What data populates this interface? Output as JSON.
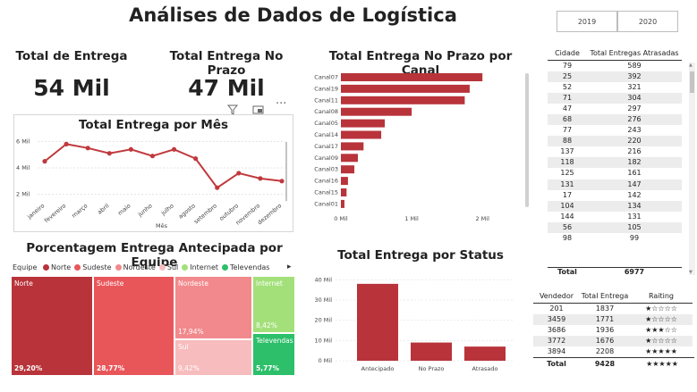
{
  "header": {
    "title": "Análises de Dados de Logística"
  },
  "year_filter": {
    "options": [
      "2019",
      "2020"
    ]
  },
  "kpis": [
    {
      "label": "Total de Entrega",
      "value": "54 Mil"
    },
    {
      "label": "Total Entrega No Prazo",
      "value": "47 Mil"
    }
  ],
  "visual_toolbar": {
    "filter_icon": "filter-icon",
    "focus_icon": "focus-mode-icon",
    "more_icon": "more-options-icon",
    "more_glyph": "···"
  },
  "monthly_chart": {
    "title": "Total Entrega por Mês",
    "xlabel": "Mês",
    "y_ticks": [
      "6 Mil",
      "4 Mil",
      "2 Mil"
    ],
    "color": "#c0393d"
  },
  "channel_chart": {
    "title": "Total Entrega No Prazo por Canal",
    "x_ticks": [
      "0 Mil",
      "1 Mil",
      "2 Mil"
    ],
    "color": "#b8343a"
  },
  "status_chart": {
    "title": "Total Entrega por Status",
    "y_ticks": [
      "40 Mil",
      "30 Mil",
      "20 Mil",
      "10 Mil",
      "0 Mil"
    ],
    "color": "#b8343a"
  },
  "treemap": {
    "title": "Porcentagem Entrega Antecipada por Equipe",
    "legend_label": "Equipe",
    "legend_more_icon": "chevron-right-icon",
    "legend_more_glyph": "▸",
    "items": [
      {
        "name": "Norte",
        "pct": "29,20%",
        "color": "#b8343a"
      },
      {
        "name": "Sudeste",
        "pct": "28,77%",
        "color": "#e8565a"
      },
      {
        "name": "Nordeste",
        "pct": "17,94%",
        "color": "#f2898c"
      },
      {
        "name": "Sul",
        "pct": "9,42%",
        "color": "#f7bcbd"
      },
      {
        "name": "Internet",
        "pct": "8,42%",
        "color": "#a3e07a"
      },
      {
        "name": "Televendas",
        "pct": "5,77%",
        "color": "#2dbf6a"
      }
    ]
  },
  "city_table": {
    "headers": [
      "Cidade",
      "Total Entregas Atrasadas"
    ],
    "rows": [
      [
        "79",
        "589"
      ],
      [
        "25",
        "392"
      ],
      [
        "52",
        "321"
      ],
      [
        "71",
        "304"
      ],
      [
        "47",
        "297"
      ],
      [
        "68",
        "276"
      ],
      [
        "77",
        "243"
      ],
      [
        "88",
        "220"
      ],
      [
        "137",
        "216"
      ],
      [
        "118",
        "182"
      ],
      [
        "125",
        "161"
      ],
      [
        "131",
        "147"
      ],
      [
        "17",
        "142"
      ],
      [
        "104",
        "134"
      ],
      [
        "144",
        "131"
      ],
      [
        "56",
        "105"
      ],
      [
        "98",
        "99"
      ]
    ],
    "total_label": "Total",
    "total_value": "6977",
    "scroll_up_glyph": "▲",
    "scroll_down_glyph": "▼"
  },
  "seller_table": {
    "headers": [
      "Vendedor",
      "Total Entrega",
      "Raiting"
    ],
    "rows": [
      {
        "id": "201",
        "total": "1837",
        "stars": 1
      },
      {
        "id": "3459",
        "total": "1771",
        "stars": 1
      },
      {
        "id": "3686",
        "total": "1936",
        "stars": 3
      },
      {
        "id": "3772",
        "total": "1676",
        "stars": 1
      },
      {
        "id": "3894",
        "total": "2208",
        "stars": 5
      }
    ],
    "total_label": "Total",
    "total_value": "9428",
    "total_stars": 5
  },
  "chart_data": [
    {
      "type": "line",
      "title": "Total Entrega por Mês",
      "xlabel": "Mês",
      "ylabel": "",
      "categories": [
        "janeiro",
        "fevereiro",
        "março",
        "abril",
        "maio",
        "junho",
        "julho",
        "agosto",
        "setembro",
        "outubro",
        "novembro",
        "dezembro"
      ],
      "values": [
        4500,
        5800,
        5500,
        5100,
        5400,
        4900,
        5400,
        4700,
        2500,
        3600,
        3200,
        3000
      ],
      "ylim": [
        1500,
        6500
      ]
    },
    {
      "type": "bar",
      "orientation": "horizontal",
      "title": "Total Entrega No Prazo por Canal",
      "categories": [
        "Canal07",
        "Canal19",
        "Canal11",
        "Canal08",
        "Canal05",
        "Canal14",
        "Canal17",
        "Canal09",
        "Canal03",
        "Canal16",
        "Canal15",
        "Canal01"
      ],
      "values": [
        2000,
        1820,
        1750,
        1000,
        620,
        570,
        320,
        240,
        190,
        100,
        80,
        50
      ],
      "xlim": [
        0,
        2200
      ]
    },
    {
      "type": "bar",
      "title": "Total Entrega por Status",
      "categories": [
        "Antecipado",
        "No Prazo",
        "Atrasado"
      ],
      "values": [
        38000,
        9000,
        7000
      ],
      "ylim": [
        0,
        45000
      ]
    }
  ]
}
